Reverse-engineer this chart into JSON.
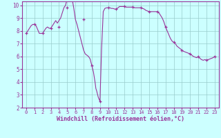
{
  "x": [
    0,
    1,
    2,
    3,
    4,
    5,
    6,
    7,
    8,
    9,
    10,
    11,
    12,
    13,
    14,
    15,
    16,
    17,
    18,
    19,
    20,
    21,
    22,
    23
  ],
  "y": [
    7.8,
    8.5,
    7.8,
    8.2,
    8.3,
    9.8,
    10.5,
    8.9,
    5.3,
    2.5,
    9.8,
    9.7,
    9.9,
    9.85,
    9.8,
    9.5,
    9.5,
    8.3,
    7.1,
    6.5,
    6.2,
    6.0,
    5.7,
    6.0
  ],
  "dense_x": [
    0,
    0.2,
    0.4,
    0.5,
    0.6,
    0.8,
    1.0,
    1.2,
    1.4,
    1.6,
    1.8,
    2.0,
    2.2,
    2.4,
    2.6,
    2.8,
    3.0,
    3.2,
    3.4,
    3.6,
    3.8,
    4.0,
    4.2,
    4.4,
    4.5,
    4.6,
    4.8,
    5.0,
    5.2,
    5.4,
    5.5,
    5.6,
    5.8,
    6.0,
    6.2,
    6.4,
    6.6,
    6.8,
    7.0,
    7.2,
    7.4,
    7.6,
    7.8,
    8.0,
    8.2,
    8.4,
    8.5,
    8.6,
    8.8,
    9.0,
    9.2,
    9.4,
    9.6,
    9.8,
    10.0,
    10.2,
    10.4,
    10.6,
    10.8,
    11.0,
    11.2,
    11.4,
    11.6,
    11.8,
    12.0,
    12.2,
    12.4,
    12.6,
    12.8,
    13.0,
    13.2,
    13.4,
    13.6,
    13.8,
    14.0,
    14.2,
    14.4,
    14.6,
    14.8,
    15.0,
    15.2,
    15.4,
    15.6,
    15.8,
    16.0,
    16.2,
    16.4,
    16.6,
    16.8,
    17.0,
    17.2,
    17.4,
    17.6,
    17.8,
    18.0,
    18.2,
    18.4,
    18.6,
    18.8,
    19.0,
    19.2,
    19.4,
    19.6,
    19.8,
    20.0,
    20.2,
    20.4,
    20.6,
    20.8,
    21.0,
    21.2,
    21.4,
    21.6,
    21.8,
    22.0,
    22.2,
    22.4,
    22.6,
    22.8,
    23.0
  ],
  "dense_y": [
    7.8,
    8.0,
    8.2,
    8.3,
    8.4,
    8.5,
    8.5,
    8.4,
    8.1,
    7.8,
    7.8,
    7.8,
    8.0,
    8.2,
    8.3,
    8.2,
    8.2,
    8.4,
    8.6,
    8.8,
    8.6,
    8.8,
    9.0,
    9.4,
    9.6,
    9.8,
    10.0,
    10.5,
    10.5,
    10.4,
    10.5,
    10.5,
    9.8,
    8.9,
    8.5,
    8.0,
    7.5,
    7.0,
    6.5,
    6.2,
    6.1,
    6.0,
    5.8,
    5.3,
    4.8,
    4.0,
    3.5,
    3.3,
    2.8,
    2.5,
    6.6,
    9.5,
    9.75,
    9.8,
    9.8,
    9.8,
    9.75,
    9.75,
    9.7,
    9.7,
    9.8,
    9.9,
    9.9,
    9.9,
    9.9,
    9.85,
    9.85,
    9.85,
    9.85,
    9.85,
    9.8,
    9.8,
    9.8,
    9.8,
    9.8,
    9.75,
    9.7,
    9.6,
    9.55,
    9.5,
    9.5,
    9.5,
    9.5,
    9.5,
    9.5,
    9.4,
    9.2,
    9.0,
    8.7,
    8.3,
    8.0,
    7.7,
    7.4,
    7.2,
    7.1,
    7.0,
    6.8,
    6.7,
    6.6,
    6.5,
    6.4,
    6.35,
    6.3,
    6.25,
    6.2,
    6.1,
    6.0,
    5.95,
    5.9,
    6.0,
    5.85,
    5.75,
    5.7,
    5.75,
    5.7,
    5.75,
    5.8,
    5.85,
    5.9,
    6.0
  ],
  "line_color": "#993399",
  "marker_color": "#993399",
  "bg_color": "#ccffff",
  "grid_color": "#99cccc",
  "xlabel": "Windchill (Refroidissement éolien,°C)",
  "ylim": [
    2,
    10
  ],
  "xlim": [
    0,
    23
  ],
  "yticks": [
    2,
    3,
    4,
    5,
    6,
    7,
    8,
    9,
    10
  ],
  "xticks": [
    0,
    1,
    2,
    3,
    4,
    5,
    6,
    7,
    8,
    9,
    10,
    11,
    12,
    13,
    14,
    15,
    16,
    17,
    18,
    19,
    20,
    21,
    22,
    23
  ]
}
